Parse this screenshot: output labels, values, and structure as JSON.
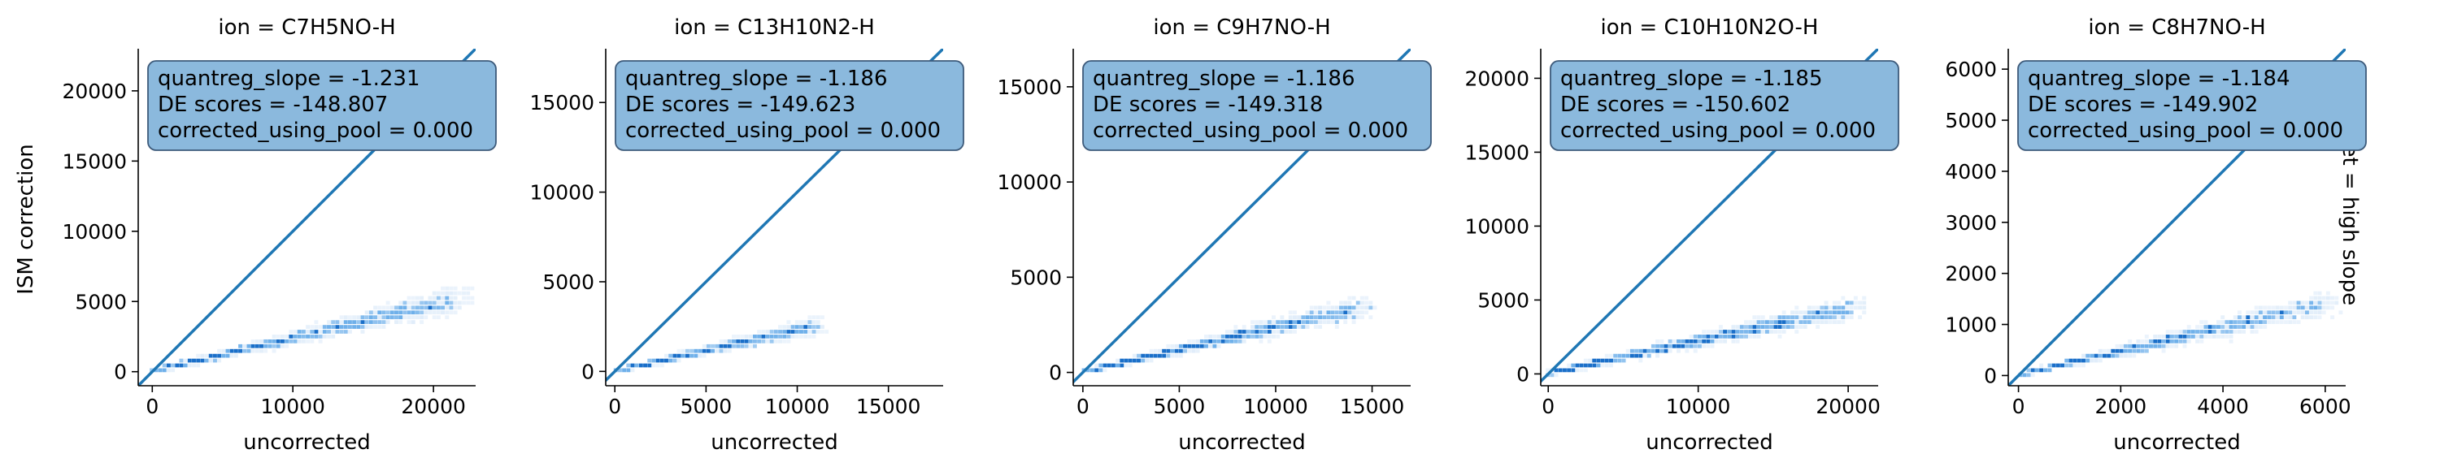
{
  "figure": {
    "ylabel": "ISM correction",
    "row_label": "set = high slope"
  },
  "colors": {
    "line": "#1f77b4",
    "box_fill": "#8bb9dd",
    "box_edge": "#3d5a7a",
    "hex_light": "#cfe3f7",
    "hex_mid": "#6fb0ea",
    "hex_dark": "#1a6fc9"
  },
  "chart_data": [
    {
      "type": "scatter",
      "title": "ion = C7H5NO-H",
      "xlabel": "uncorrected",
      "ylabel": "ISM correction",
      "xlim": [
        -1000,
        23000
      ],
      "ylim": [
        -1000,
        23000
      ],
      "xticks": [
        0,
        10000,
        20000
      ],
      "yticks": [
        0,
        5000,
        10000,
        15000,
        20000
      ],
      "density": {
        "x_max": 22000,
        "y_at_x_max": 5200
      },
      "reference_line": "y = x",
      "annotations": [
        "quantreg_slope = -1.231",
        "DE scores = -148.807",
        "corrected_using_pool = 0.000"
      ]
    },
    {
      "type": "scatter",
      "title": "ion = C13H10N2-H",
      "xlabel": "uncorrected",
      "xlim": [
        -500,
        18000
      ],
      "ylim": [
        -800,
        18000
      ],
      "xticks": [
        0,
        5000,
        10000,
        15000
      ],
      "yticks": [
        0,
        5000,
        10000,
        15000
      ],
      "density": {
        "x_max": 11000,
        "y_at_x_max": 2500
      },
      "reference_line": "y = x",
      "annotations": [
        "quantreg_slope = -1.186",
        "DE scores = -149.623",
        "corrected_using_pool = 0.000"
      ]
    },
    {
      "type": "scatter",
      "title": "ion = C9H7NO-H",
      "xlabel": "uncorrected",
      "xlim": [
        -500,
        17000
      ],
      "ylim": [
        -700,
        17000
      ],
      "xticks": [
        0,
        5000,
        10000,
        15000
      ],
      "yticks": [
        0,
        5000,
        10000,
        15000
      ],
      "density": {
        "x_max": 14500,
        "y_at_x_max": 3400
      },
      "reference_line": "y = x",
      "annotations": [
        "quantreg_slope = -1.186",
        "DE scores = -149.318",
        "corrected_using_pool = 0.000"
      ]
    },
    {
      "type": "scatter",
      "title": "ion = C10H10N2O-H",
      "xlabel": "uncorrected",
      "xlim": [
        -500,
        22000
      ],
      "ylim": [
        -800,
        22000
      ],
      "xticks": [
        0,
        10000,
        20000
      ],
      "yticks": [
        0,
        5000,
        10000,
        15000,
        20000
      ],
      "density": {
        "x_max": 20500,
        "y_at_x_max": 4500
      },
      "reference_line": "y = x",
      "annotations": [
        "quantreg_slope = -1.185",
        "DE scores = -150.602",
        "corrected_using_pool = 0.000"
      ]
    },
    {
      "type": "scatter",
      "title": "ion = C8H7NO-H",
      "xlabel": "uncorrected",
      "xlim": [
        -200,
        6400
      ],
      "ylim": [
        -200,
        6400
      ],
      "xticks": [
        0,
        2000,
        4000,
        6000
      ],
      "yticks": [
        0,
        1000,
        2000,
        3000,
        4000,
        5000,
        6000
      ],
      "density": {
        "x_max": 6000,
        "y_at_x_max": 1400
      },
      "reference_line": "y = x",
      "annotations": [
        "quantreg_slope = -1.184",
        "DE scores = -149.902",
        "corrected_using_pool = 0.000"
      ]
    }
  ]
}
